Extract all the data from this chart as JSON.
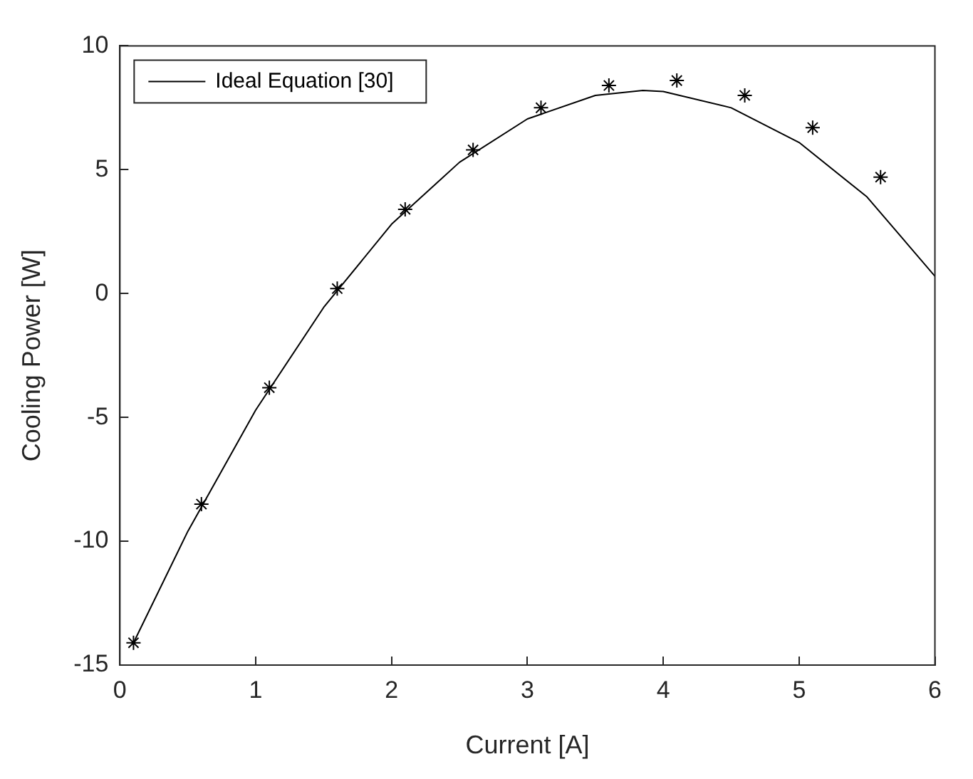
{
  "chart_data": {
    "type": "line",
    "xlabel": "Current [A]",
    "ylabel": "Cooling Power [W]",
    "xlim": [
      0,
      6
    ],
    "xticks": [
      0,
      1,
      2,
      3,
      4,
      5,
      6
    ],
    "ylim": [
      -15,
      10
    ],
    "yticks": [
      -15,
      -10,
      -5,
      0,
      5,
      10
    ],
    "grid": false,
    "legend": "top left",
    "series": [
      {
        "name": "Ideal Equation [30]",
        "color": "#000000",
        "marker": "none",
        "line_style": "solid",
        "x": [
          0.1,
          0.5,
          1.0,
          1.5,
          2.0,
          2.5,
          3.0,
          3.5,
          3.85,
          4.0,
          4.5,
          5.0,
          5.5,
          6.0
        ],
        "values": [
          -14.1,
          -9.6,
          -4.7,
          -0.56,
          2.8,
          5.3,
          7.05,
          8.0,
          8.2,
          8.16,
          7.5,
          6.1,
          3.9,
          0.7
        ]
      },
      {
        "type": "scatter",
        "color": "#000000",
        "marker": "cross",
        "x": [
          0.1,
          0.6,
          1.1,
          1.6,
          2.1,
          2.6,
          3.1,
          3.6,
          4.1,
          4.6,
          5.1,
          5.6
        ],
        "values": [
          -14.1,
          -8.5,
          -3.8,
          0.2,
          3.4,
          5.8,
          7.5,
          8.4,
          8.6,
          8.0,
          6.7,
          4.7
        ]
      }
    ]
  }
}
